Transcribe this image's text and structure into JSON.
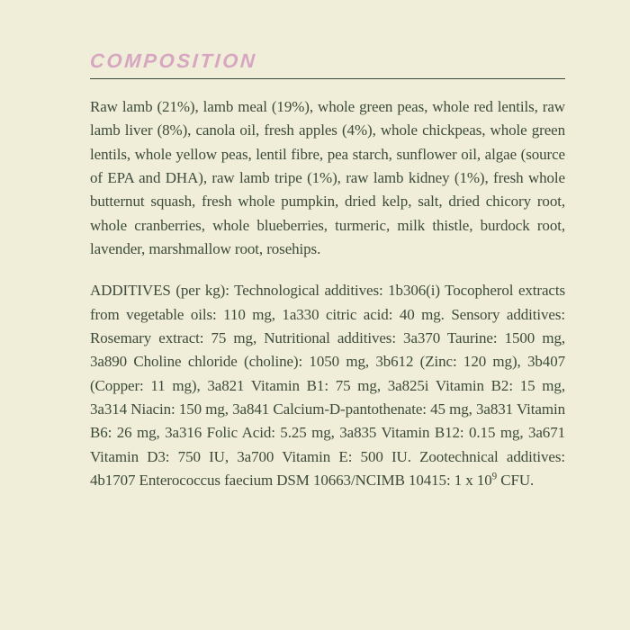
{
  "heading": {
    "text": "COMPOSITION",
    "color": "#d7a6c1"
  },
  "rule_color": "#3c4a3a",
  "text_color": "#3c4a3a",
  "background_color": "#f0eed9",
  "paragraphs": [
    "Raw lamb (21%), lamb meal (19%), whole green peas, whole red lentils, raw lamb liver (8%), canola oil, fresh apples (4%), whole chickpeas, whole green lentils, whole yellow peas, lentil fibre, pea starch, sunflower oil, algae (source of EPA and DHA), raw lamb tripe (1%), raw lamb kidney (1%), fresh whole butternut squash, fresh whole pumpkin, dried kelp, salt, dried chicory root, whole cranberries, whole blueberries, turmeric, milk thistle, burdock root, lavender, marshmallow root, rosehips.",
    "ADDITIVES (per kg): Technological additives: 1b306(i) Tocopherol extracts from vegetable oils: 110 mg, 1a330 citric acid: 40 mg. Sensory additives: Rosemary extract: 75 mg, Nutritional additives: 3a370 Taurine: 1500 mg, 3a890 Choline chloride (choline): 1050 mg, 3b612 (Zinc: 120 mg), 3b407 (Copper: 11 mg), 3a821 Vitamin B1: 75 mg, 3a825i Vitamin B2: 15 mg, 3a314 Niacin: 150 mg, 3a841 Calcium-D-pantothenate: 45 mg, 3a831 Vitamin B6: 26 mg, 3a316 Folic Acid: 5.25 mg, 3a835 Vitamin B12: 0.15 mg, 3a671 Vitamin D3: 750 IU, 3a700 Vitamin E: 500 IU. Zootechnical additives: 4b1707 Enterococcus faecium DSM 10663/NCIMB 10415: 1 x 10⁹ CFU."
  ],
  "typography": {
    "heading_fontsize": 22,
    "body_fontsize": 17,
    "body_lineheight": 1.55,
    "body_align": "justify"
  }
}
